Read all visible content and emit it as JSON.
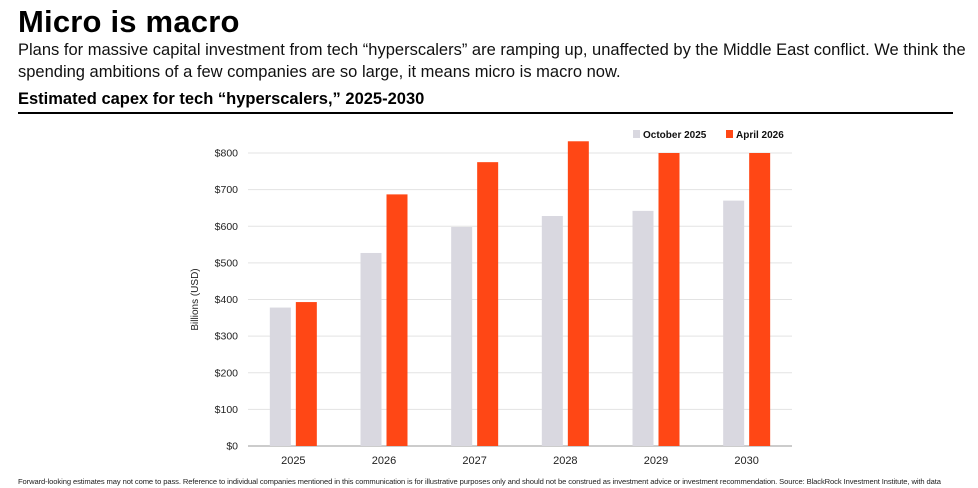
{
  "header": {
    "title": "Micro is macro",
    "subtitle": "Plans for massive capital investment from tech “hyperscalers” are ramping up, unaffected by the Middle East conflict. We think the spending ambitions of a few companies are so large, it means micro is macro now."
  },
  "colors": {
    "series1": "#d9d8e0",
    "series2": "#ff4715",
    "grid": "#e3e3e3",
    "axis": "#999999"
  },
  "chart_data": {
    "type": "bar",
    "title": "Estimated capex for tech “hyperscalers,” 2025-2030",
    "xlabel": "",
    "ylabel": "Billions (USD)",
    "ylim": [
      0,
      800
    ],
    "yticks": [
      0,
      100,
      200,
      300,
      400,
      500,
      600,
      700,
      800
    ],
    "ytick_labels": [
      "$0",
      "$100",
      "$200",
      "$300",
      "$400",
      "$500",
      "$600",
      "$700",
      "$800"
    ],
    "grid": true,
    "legend_position": "top-right",
    "categories": [
      "2025",
      "2026",
      "2027",
      "2028",
      "2029",
      "2030"
    ],
    "series": [
      {
        "name": "October 2025",
        "values": [
          378,
          527,
          598,
          628,
          642,
          670
        ]
      },
      {
        "name": "April 2026",
        "values": [
          393,
          687,
          775,
          832,
          800,
          800
        ]
      }
    ]
  },
  "footer": {
    "text": "Forward-looking estimates may not come to pass. Reference to individual companies mentioned in this communication is for illustrative purposes only and should not be construed as investment advice or investment recommendation. Source: BlackRock Investment Institute, with data"
  }
}
